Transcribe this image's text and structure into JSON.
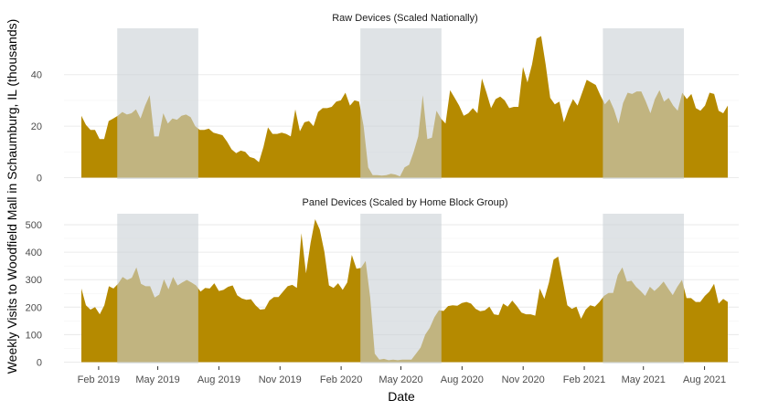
{
  "chart_data": {
    "type": "area",
    "xlabel": "Date",
    "ylabel": "Weekly Visits to Woodfield Mall in Schaumburg, IL (thousands)",
    "x_range": [
      "2019-01-06",
      "2021-09-05"
    ],
    "x_interval": "week",
    "x_ticks": [
      "Feb 2019",
      "May 2019",
      "Aug 2019",
      "Nov 2019",
      "Feb 2020",
      "May 2020",
      "Aug 2020",
      "Nov 2020",
      "Feb 2021",
      "May 2021",
      "Aug 2021"
    ],
    "x_tick_dates": [
      "2019-02-01",
      "2019-05-01",
      "2019-08-01",
      "2019-11-01",
      "2020-02-01",
      "2020-05-01",
      "2020-08-01",
      "2020-11-01",
      "2021-02-01",
      "2021-05-01",
      "2021-08-01"
    ],
    "shaded_periods": [
      [
        "2019-03-01",
        "2019-07-01"
      ],
      [
        "2020-03-01",
        "2020-07-01"
      ],
      [
        "2021-03-01",
        "2021-07-01"
      ]
    ],
    "colors": {
      "fill": "#b58a00",
      "shade": "#c9d0d6",
      "grid": "#ebebeb"
    },
    "panels": [
      {
        "title": "Raw Devices (Scaled Nationally)",
        "ylim": [
          0,
          58
        ],
        "y_ticks": [
          0,
          20,
          40
        ],
        "values": [
          24,
          20.5,
          18.5,
          18.5,
          15,
          15,
          22,
          23,
          24,
          25.5,
          24.5,
          25,
          26.5,
          23,
          28,
          32,
          16,
          16,
          25,
          21,
          23,
          22.5,
          24,
          24.5,
          23.5,
          20,
          18.5,
          18.5,
          19,
          17.5,
          17,
          16.5,
          14,
          11,
          9.5,
          10.5,
          10,
          8,
          7.5,
          6,
          12,
          19.5,
          17,
          17,
          17.5,
          17,
          16,
          26.5,
          18,
          21.5,
          22,
          20,
          25.5,
          27,
          27,
          27.5,
          29.5,
          30,
          33,
          28,
          30,
          29.5,
          20,
          4,
          1,
          1,
          0.8,
          1,
          1.5,
          1.2,
          0.5,
          4,
          5,
          10,
          16,
          32,
          15,
          15.5,
          26,
          23,
          21,
          34,
          31,
          28,
          24,
          25,
          27,
          25,
          38.5,
          33,
          27,
          30.5,
          31.5,
          30,
          27,
          27.5,
          27.5,
          43,
          37,
          44,
          54,
          55,
          44,
          31,
          28.5,
          29.5,
          21.5,
          26.5,
          30.5,
          28,
          33,
          38,
          37,
          36,
          32,
          28.5,
          30.5,
          26.5,
          21,
          29,
          33,
          32.5,
          33.5,
          33.5,
          29.5,
          25,
          30.5,
          34,
          29.5,
          31,
          28,
          26,
          33,
          30.5,
          32.5,
          27,
          26,
          28,
          33,
          32.5,
          26,
          25,
          28
        ]
      },
      {
        "title": "Panel Devices (Scaled by Home Block Group)",
        "ylim": [
          0,
          540
        ],
        "y_ticks": [
          0,
          100,
          200,
          300,
          400,
          500
        ],
        "values": [
          268,
          207,
          191,
          200,
          174,
          207,
          276,
          268,
          285,
          310,
          299,
          307,
          345,
          285,
          276,
          276,
          235,
          246,
          301,
          265,
          310,
          279,
          290,
          299,
          290,
          279,
          257,
          270,
          268,
          287,
          259,
          263,
          274,
          279,
          243,
          232,
          227,
          229,
          207,
          191,
          193,
          224,
          237,
          237,
          257,
          276,
          281,
          270,
          469,
          323,
          434,
          520,
          483,
          401,
          279,
          270,
          287,
          263,
          290,
          390,
          340,
          343,
          368,
          235,
          31,
          9,
          12,
          7,
          9,
          7,
          9,
          9,
          9,
          31,
          53,
          100,
          125,
          163,
          189,
          186,
          204,
          207,
          205,
          215,
          219,
          213,
          194,
          185,
          188,
          202,
          174,
          171,
          213,
          202,
          224,
          204,
          180,
          174,
          174,
          169,
          268,
          230,
          290,
          373,
          384,
          296,
          207,
          194,
          202,
          158,
          191,
          207,
          202,
          219,
          241,
          252,
          252,
          317,
          345,
          293,
          296,
          274,
          259,
          241,
          274,
          259,
          274,
          293,
          268,
          244,
          274,
          299,
          233,
          233,
          219,
          219,
          241,
          257,
          285,
          213,
          230,
          219
        ]
      }
    ]
  }
}
